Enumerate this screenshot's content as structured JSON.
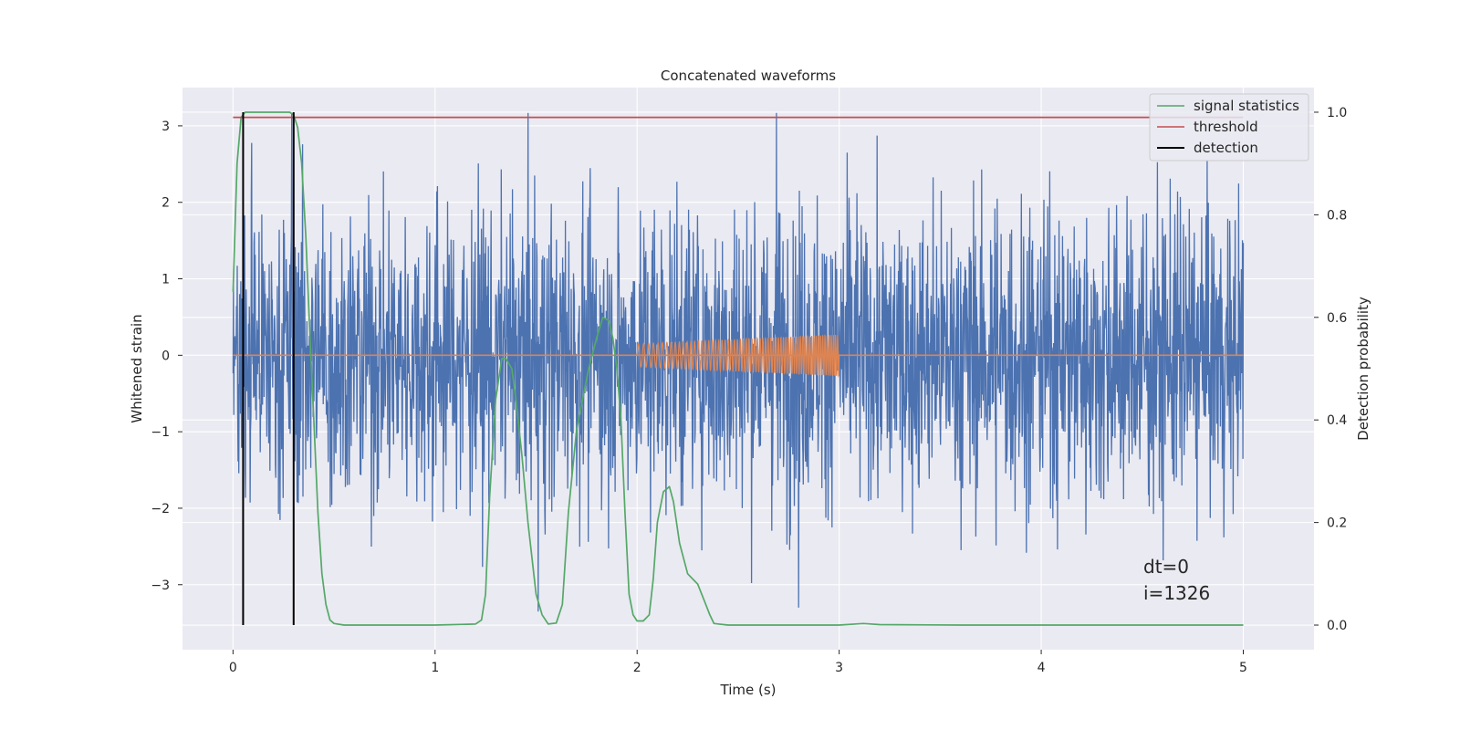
{
  "chart_data": {
    "type": "line",
    "title": "Concatenated waveforms",
    "xlabel": "Time (s)",
    "ylabel": "Whitened strain",
    "y2label": "Detection probability",
    "xlim": [
      -0.25,
      5.35
    ],
    "ylim": [
      -3.85,
      3.5
    ],
    "y2lim": [
      -0.048,
      1.048
    ],
    "xticks": [
      0,
      1,
      2,
      3,
      4,
      5
    ],
    "xtick_labels": [
      "0",
      "1",
      "2",
      "3",
      "4",
      "5"
    ],
    "yticks": [
      -3,
      -2,
      -1,
      0,
      1,
      2,
      3
    ],
    "ytick_labels": [
      "−3",
      "−2",
      "−1",
      "0",
      "1",
      "2",
      "3"
    ],
    "y2ticks": [
      0.0,
      0.2,
      0.4,
      0.6,
      0.8,
      1.0
    ],
    "y2tick_labels": [
      "0.0",
      "0.2",
      "0.4",
      "0.6",
      "0.8",
      "1.0"
    ],
    "grid": true,
    "legend_position": "top-right",
    "legend": [
      "signal statistics",
      "threshold",
      "detection"
    ],
    "colors": {
      "strain": "#4c72b0",
      "waveform": "#dd8452",
      "signal_statistics": "#55a868",
      "threshold": "#c44e52",
      "detection": "#000000",
      "axes_bg": "#eaeaf2",
      "grid": "#ffffff"
    },
    "strain_noise": {
      "x_range": [
        0,
        5
      ],
      "typical_amplitude": 1.0,
      "max": 3.17,
      "min": -3.35,
      "note_peaks": [
        [
          0.29,
          3.17
        ],
        [
          2.69,
          3.17
        ],
        [
          1.51,
          -3.35
        ],
        [
          2.8,
          -3.3
        ]
      ]
    },
    "injected_waveform": {
      "flat_zero_range": [
        0,
        5
      ],
      "chirp_start": 2.0,
      "chirp_end": 3.0,
      "amplitude_start": 0.15,
      "amplitude_end": 0.27
    },
    "series": [
      {
        "name": "signal statistics",
        "axis": "right",
        "x": [
          0.0,
          0.02,
          0.04,
          0.06,
          0.08,
          0.12,
          0.2,
          0.28,
          0.3,
          0.32,
          0.34,
          0.36,
          0.38,
          0.4,
          0.42,
          0.44,
          0.46,
          0.48,
          0.5,
          0.55,
          0.7,
          1.0,
          1.2,
          1.23,
          1.25,
          1.27,
          1.3,
          1.33,
          1.35,
          1.38,
          1.4,
          1.43,
          1.46,
          1.5,
          1.53,
          1.56,
          1.6,
          1.63,
          1.66,
          1.7,
          1.73,
          1.76,
          1.8,
          1.83,
          1.86,
          1.88,
          1.9,
          1.92,
          1.94,
          1.96,
          1.98,
          2.0,
          2.03,
          2.06,
          2.08,
          2.1,
          2.13,
          2.16,
          2.18,
          2.21,
          2.25,
          2.28,
          2.3,
          2.33,
          2.36,
          2.38,
          2.45,
          2.6,
          3.0,
          3.12,
          3.2,
          3.6,
          4.0,
          4.5,
          5.0
        ],
        "y": [
          0.65,
          0.9,
          0.99,
          1.0,
          1.0,
          1.0,
          1.0,
          1.0,
          0.995,
          0.97,
          0.9,
          0.76,
          0.57,
          0.4,
          0.22,
          0.1,
          0.04,
          0.01,
          0.003,
          0.0,
          0.0,
          0.0,
          0.002,
          0.01,
          0.06,
          0.25,
          0.44,
          0.52,
          0.52,
          0.5,
          0.44,
          0.33,
          0.2,
          0.06,
          0.02,
          0.002,
          0.004,
          0.04,
          0.22,
          0.38,
          0.44,
          0.5,
          0.56,
          0.6,
          0.594,
          0.56,
          0.5,
          0.4,
          0.22,
          0.06,
          0.02,
          0.008,
          0.008,
          0.02,
          0.09,
          0.2,
          0.26,
          0.27,
          0.24,
          0.16,
          0.1,
          0.088,
          0.08,
          0.05,
          0.02,
          0.003,
          0.0,
          0.0,
          0.0,
          0.003,
          0.001,
          0.0,
          0.0,
          0.0,
          0.0
        ]
      },
      {
        "name": "threshold",
        "axis": "right",
        "x": [
          0.0,
          5.0
        ],
        "y": [
          0.99,
          0.99
        ]
      },
      {
        "name": "detection",
        "axis": "right",
        "type": "vlines",
        "x": [
          0.05,
          0.3
        ],
        "ymin": 0.0,
        "ymax": 1.0
      }
    ],
    "annotations": [
      "dt=0",
      "i=1326"
    ]
  }
}
